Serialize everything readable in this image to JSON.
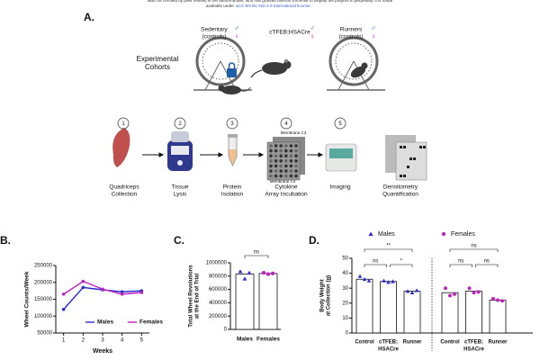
{
  "header": [
    "was not certified by peer review) is the author/funder, who has granted bioRxiv a license to display the preprint in perpetuity. It is made",
    "available under",
    "aCC-BY-NC-ND 4.0 International license."
  ],
  "panel_a": {
    "label": "A.",
    "cohorts_title": [
      "Experimental",
      "Cohorts"
    ],
    "cohorts": [
      [
        "Sedentary",
        "(controls)"
      ],
      [
        "cTFEB;HSACre"
      ],
      [
        "Runners",
        "(controls)"
      ]
    ],
    "sex_symbols": [
      "♂",
      "♀"
    ],
    "step_numbers": [
      1,
      2,
      3,
      4,
      5
    ],
    "step_labels": [
      [
        "Quadriceps",
        "Collection"
      ],
      [
        "Tissue",
        "Lysis"
      ],
      [
        "Protein",
        "Isolation"
      ],
      [
        "Cytokine",
        "Array Incubation"
      ],
      [
        "Imaging"
      ],
      [
        "Densitometry",
        "Quantification"
      ]
    ],
    "membranes": [
      "Membrane C3",
      "Membrane C4"
    ]
  },
  "chart_data": [
    {
      "type": "line",
      "label": "B.",
      "ylabel": "Wheel Counts/Week",
      "xlabel": "Weeks",
      "x": [
        1,
        2,
        3,
        4,
        5
      ],
      "xlim": [
        0.6,
        5.4
      ],
      "xticks": [
        1,
        2,
        3,
        4,
        5
      ],
      "ylim": [
        50000,
        250000
      ],
      "yticks": [
        50000,
        100000,
        150000,
        200000,
        250000
      ],
      "series": [
        {
          "name": "Males",
          "color": "#2a2ad0",
          "values": [
            120000,
            185000,
            178000,
            172000,
            175000
          ]
        },
        {
          "name": "Females",
          "color": "#c020c0",
          "values": [
            165000,
            203000,
            180000,
            165000,
            170000
          ]
        }
      ]
    },
    {
      "type": "bar",
      "label": "C.",
      "ylabel": [
        "Total Wheel Revolutions",
        "at the End of Trial"
      ],
      "categories": [
        "Males",
        "Females"
      ],
      "values": [
        830000,
        840000
      ],
      "points": [
        [
          870000,
          760000,
          850000
        ],
        [
          850000,
          830000,
          840000
        ]
      ],
      "point_colors": [
        "#2a2ad0",
        "#c020c0"
      ],
      "ylim": [
        0,
        1000000
      ],
      "yticks": [
        0,
        200000,
        400000,
        600000,
        800000,
        1000000
      ],
      "annotations": [
        "ns"
      ]
    },
    {
      "type": "grouped_bar",
      "label": "D.",
      "ylabel": [
        "Body Weight",
        "at Collection (g)"
      ],
      "categories": [
        [
          "Control"
        ],
        [
          "cTFEB;",
          "HSACre"
        ],
        [
          "Runner"
        ]
      ],
      "ylim": [
        0,
        50
      ],
      "yticks": [
        0,
        10,
        20,
        30,
        40,
        50
      ],
      "series": [
        {
          "name": "Males",
          "color": "#2a2ad0",
          "marker": "triangle",
          "values": [
            36,
            34.5,
            28
          ],
          "points": [
            [
              38,
              36,
              35
            ],
            [
              35,
              34,
              34.5
            ],
            [
              28,
              27,
              28.5
            ]
          ],
          "annotations": [
            "ns",
            "*",
            "**"
          ]
        },
        {
          "name": "Females",
          "color": "#c020c0",
          "marker": "circle",
          "values": [
            27,
            28,
            22
          ],
          "points": [
            [
              30,
              25,
              26
            ],
            [
              30,
              27,
              27.5
            ],
            [
              23,
              22,
              21.5
            ]
          ],
          "annotations": [
            "ns",
            "ns",
            "ns"
          ]
        }
      ]
    }
  ]
}
